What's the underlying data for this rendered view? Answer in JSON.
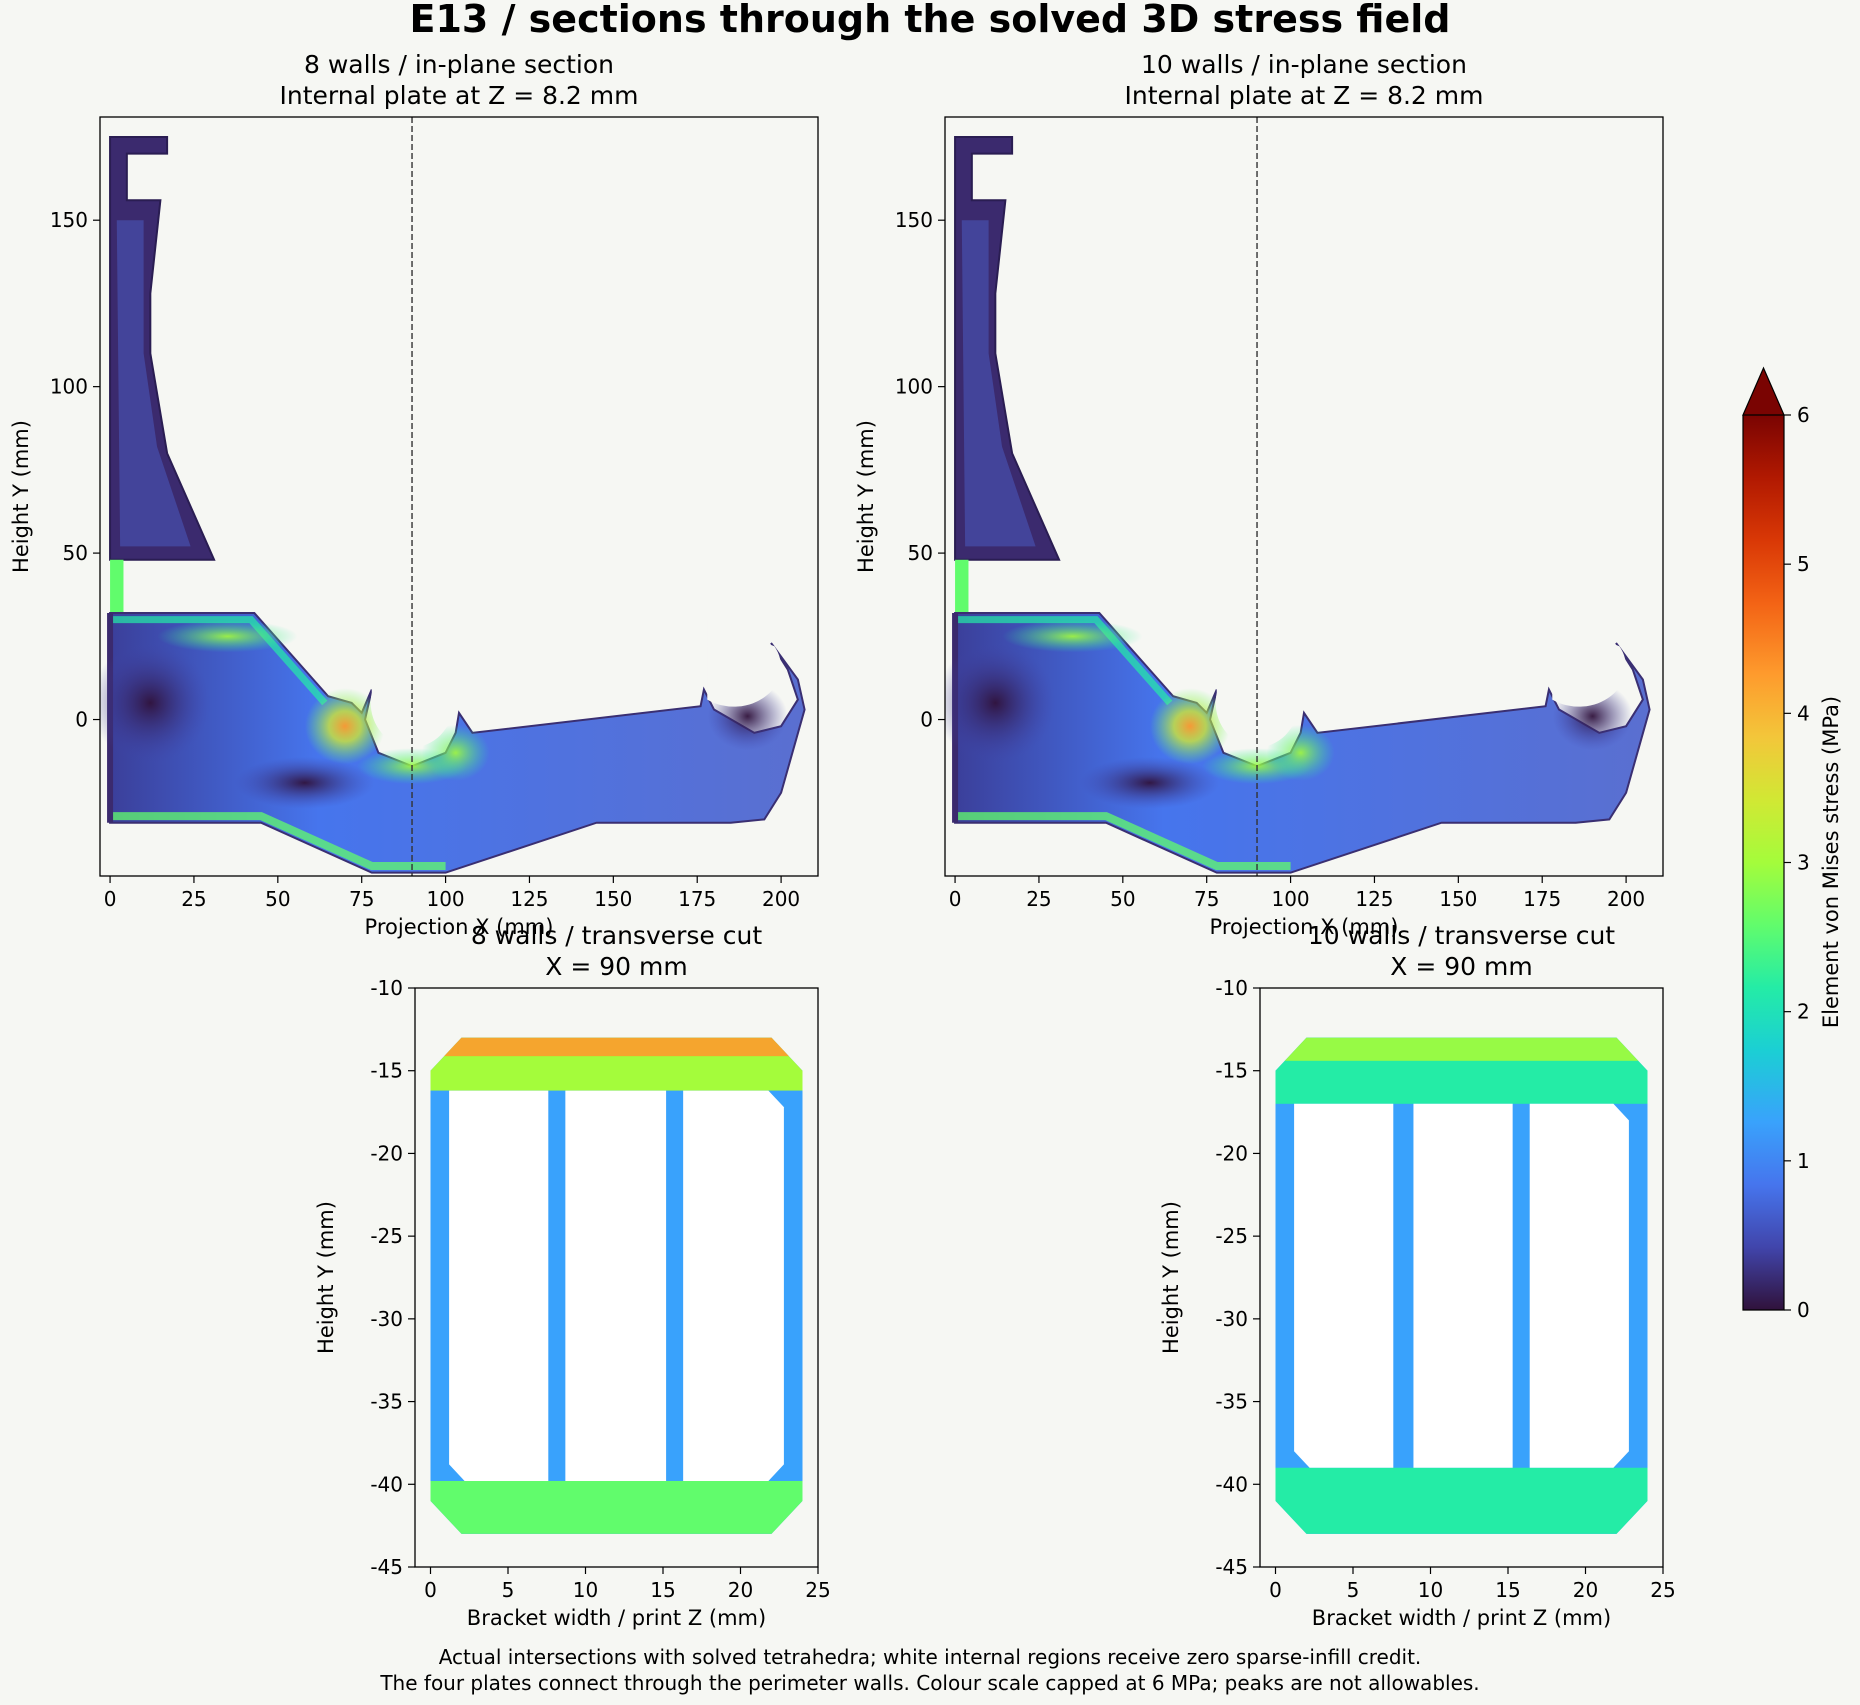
{
  "figure": {
    "title": "E13 / sections through the solved 3D stress field",
    "caption_lines": [
      "Actual intersections with solved tetrahedra; white internal regions receive zero sparse-infill credit.",
      "The four plates connect through the perimeter walls. Colour scale capped at 6 MPa; peaks are not allowables."
    ]
  },
  "colorbar": {
    "label": "Element von Mises stress (MPa)",
    "min": 0,
    "max": 6,
    "extend": "max",
    "ticks": [
      "0",
      "1",
      "2",
      "3",
      "4",
      "5",
      "6"
    ],
    "colormap": "turbo"
  },
  "chart_data": [
    {
      "type": "heatmap",
      "panel": "top-left",
      "title_lines": [
        "8 walls / in-plane section",
        "Internal plate at Z = 8.2 mm"
      ],
      "xlabel": "Projection X (mm)",
      "ylabel": "Height Y (mm)",
      "xlim": [
        -3,
        211
      ],
      "ylim": [
        -47,
        181
      ],
      "xticks": [
        0,
        25,
        50,
        75,
        100,
        125,
        150,
        175,
        200
      ],
      "yticks": [
        0,
        50,
        100,
        150
      ],
      "cut_line_x": 90,
      "wall_count": 8
    },
    {
      "type": "heatmap",
      "panel": "top-right",
      "title_lines": [
        "10 walls / in-plane section",
        "Internal plate at Z = 8.2 mm"
      ],
      "xlabel": "Projection X (mm)",
      "ylabel": "Height Y (mm)",
      "xlim": [
        -3,
        211
      ],
      "ylim": [
        -47,
        181
      ],
      "xticks": [
        0,
        25,
        50,
        75,
        100,
        125,
        150,
        175,
        200
      ],
      "yticks": [
        0,
        50,
        100,
        150
      ],
      "cut_line_x": 90,
      "wall_count": 10
    },
    {
      "type": "heatmap",
      "panel": "bottom-left",
      "title_lines": [
        "8 walls / transverse cut",
        "X = 90 mm"
      ],
      "xlabel": "Bracket width / print Z (mm)",
      "ylabel": "Height Y (mm)",
      "xlim": [
        -1,
        25
      ],
      "ylim": [
        -45,
        -10
      ],
      "xticks": [
        0,
        5,
        10,
        15,
        20,
        25
      ],
      "yticks": [
        -10,
        -15,
        -20,
        -25,
        -30,
        -35,
        -40,
        -45
      ],
      "outer": [
        [
          0,
          -15
        ],
        [
          2,
          -13
        ],
        [
          22,
          -13
        ],
        [
          24,
          -15
        ],
        [
          24,
          -41
        ],
        [
          22,
          -43
        ],
        [
          2,
          -43
        ],
        [
          0,
          -41
        ]
      ],
      "holes": [
        {
          "x0": 1.2,
          "x1": 7.6,
          "y0": -39.8,
          "y1": -16.2
        },
        {
          "x0": 8.7,
          "x1": 15.2,
          "y0": -39.8,
          "y1": -16.2
        },
        {
          "x0": 16.3,
          "x1": 22.8,
          "y0": -39.8,
          "y1": -16.2
        }
      ],
      "stress_top_mpa": 4.2,
      "stress_bottom_mpa": 2.4,
      "stress_walls_mpa": 1.3,
      "wall_count": 8
    },
    {
      "type": "heatmap",
      "panel": "bottom-right",
      "title_lines": [
        "10 walls / transverse cut",
        "X = 90 mm"
      ],
      "xlabel": "Bracket width / print Z (mm)",
      "ylabel": "Height Y (mm)",
      "xlim": [
        -1,
        25
      ],
      "ylim": [
        -45,
        -10
      ],
      "xticks": [
        0,
        5,
        10,
        15,
        20,
        25
      ],
      "yticks": [
        -10,
        -15,
        -20,
        -25,
        -30,
        -35,
        -40,
        -45
      ],
      "outer": [
        [
          0,
          -15
        ],
        [
          2,
          -13
        ],
        [
          22,
          -13
        ],
        [
          24,
          -15
        ],
        [
          24,
          -41
        ],
        [
          22,
          -43
        ],
        [
          2,
          -43
        ],
        [
          0,
          -41
        ]
      ],
      "holes": [
        {
          "x0": 1.2,
          "x1": 7.6,
          "y0": -39.0,
          "y1": -17.0
        },
        {
          "x0": 8.9,
          "x1": 15.3,
          "y0": -39.0,
          "y1": -17.0
        },
        {
          "x0": 16.4,
          "x1": 22.8,
          "y0": -39.0,
          "y1": -17.0
        }
      ],
      "stress_top_mpa": 3.2,
      "stress_bottom_mpa": 2.3,
      "stress_walls_mpa": 1.2,
      "wall_count": 10
    }
  ]
}
